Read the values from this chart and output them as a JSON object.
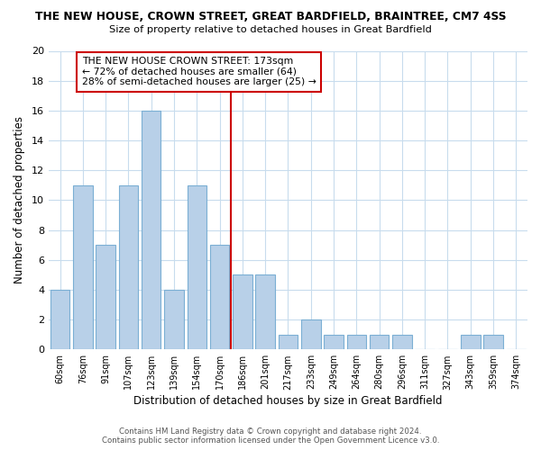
{
  "title": "THE NEW HOUSE, CROWN STREET, GREAT BARDFIELD, BRAINTREE, CM7 4SS",
  "subtitle": "Size of property relative to detached houses in Great Bardfield",
  "xlabel": "Distribution of detached houses by size in Great Bardfield",
  "ylabel": "Number of detached properties",
  "bin_labels": [
    "60sqm",
    "76sqm",
    "91sqm",
    "107sqm",
    "123sqm",
    "139sqm",
    "154sqm",
    "170sqm",
    "186sqm",
    "201sqm",
    "217sqm",
    "233sqm",
    "249sqm",
    "264sqm",
    "280sqm",
    "296sqm",
    "311sqm",
    "327sqm",
    "343sqm",
    "359sqm",
    "374sqm"
  ],
  "bar_heights": [
    4,
    11,
    7,
    11,
    16,
    4,
    11,
    7,
    5,
    5,
    1,
    2,
    1,
    1,
    1,
    1,
    0,
    0,
    1,
    1,
    0
  ],
  "bar_color": "#b8d0e8",
  "bar_edge_color": "#7bafd4",
  "vline_color": "#cc0000",
  "vline_pos": 7.5,
  "annotation_title": "THE NEW HOUSE CROWN STREET: 173sqm",
  "annotation_line1": "← 72% of detached houses are smaller (64)",
  "annotation_line2": "28% of semi-detached houses are larger (25) →",
  "ylim": [
    0,
    20
  ],
  "yticks": [
    0,
    2,
    4,
    6,
    8,
    10,
    12,
    14,
    16,
    18,
    20
  ],
  "background_color": "#ffffff",
  "grid_color": "#c8dced",
  "footer_line1": "Contains HM Land Registry data © Crown copyright and database right 2024.",
  "footer_line2": "Contains public sector information licensed under the Open Government Licence v3.0."
}
